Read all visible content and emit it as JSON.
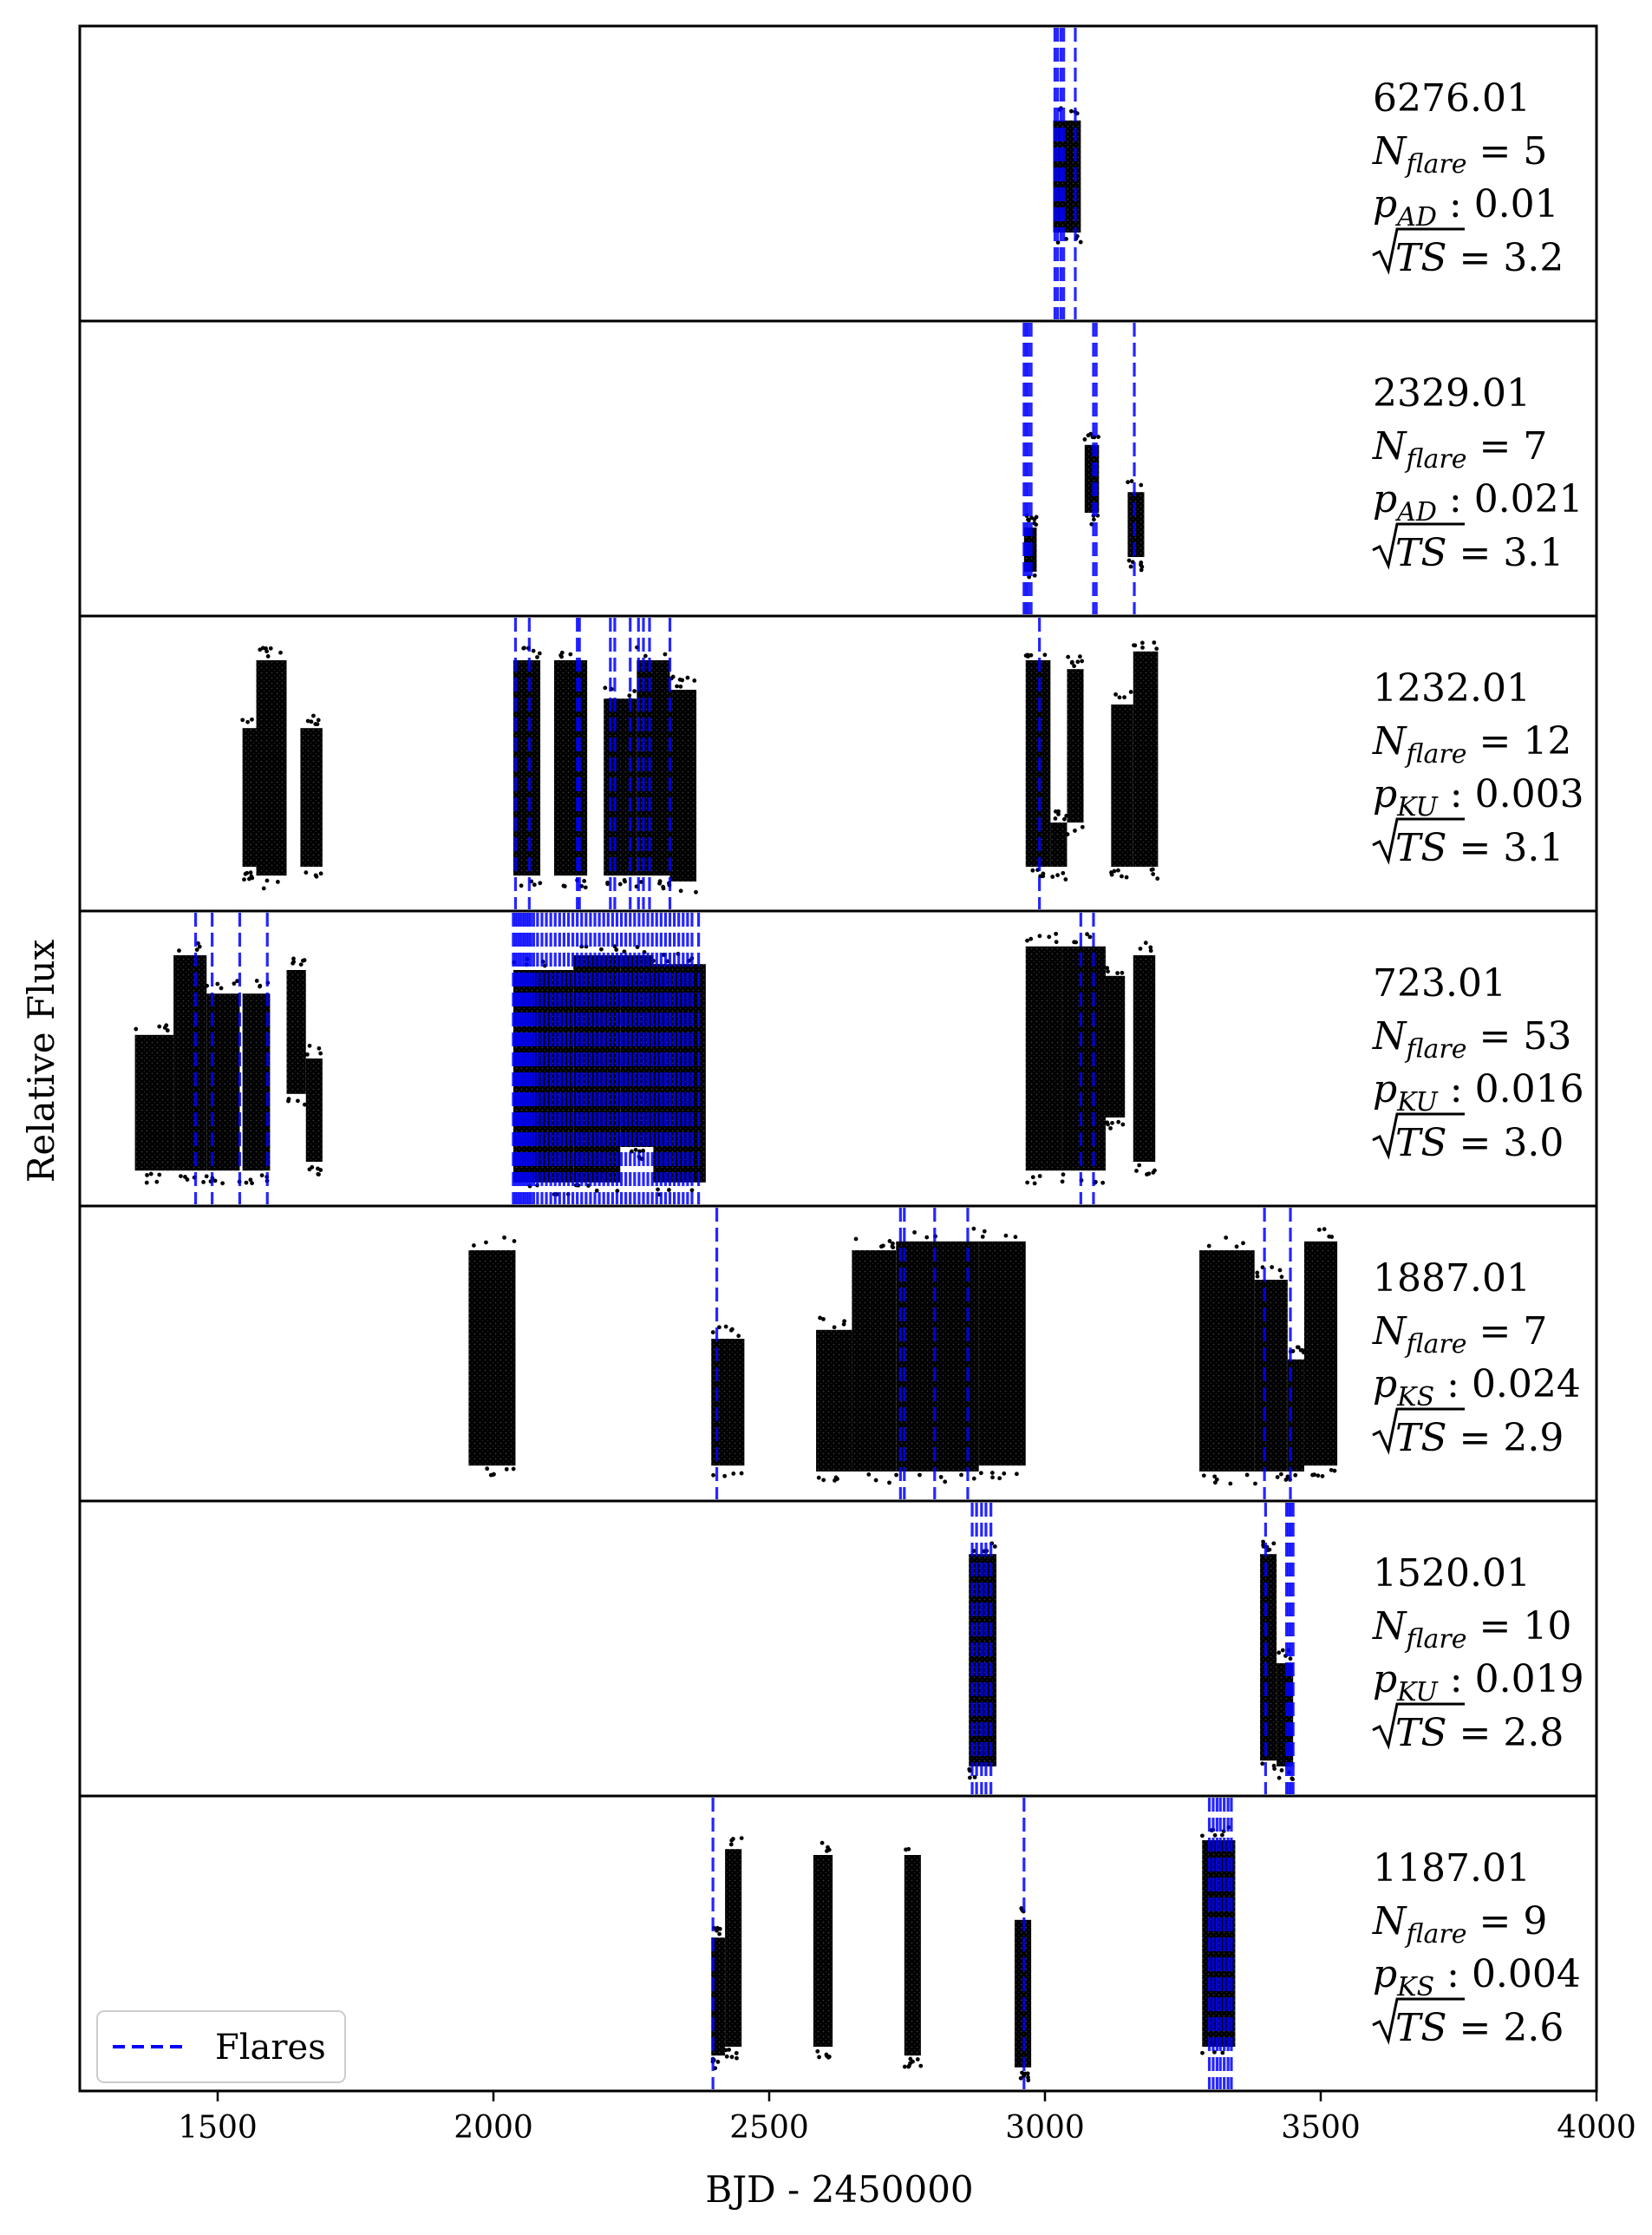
{
  "chart_data": {
    "type": "scatter",
    "xlabel": "BJD - 2450000",
    "ylabel": "Relative Flux",
    "xlim": [
      1250,
      4000
    ],
    "xticks": [
      1500,
      2000,
      2500,
      3000,
      3500,
      4000
    ],
    "xtick_labels": [
      "1500",
      "2000",
      "2500",
      "3000",
      "3500",
      "4000"
    ],
    "yticks_visible": false,
    "grid": false,
    "legend": {
      "placement": "lower-left",
      "entries": [
        {
          "label": "Flares",
          "style": "dashed",
          "color": "#0000ff"
        }
      ]
    },
    "colors": {
      "points": "#000000",
      "flare_lines": "#0000ff"
    },
    "panels": [
      {
        "id": "6276.01",
        "n_flare": "5",
        "p_name": "AD",
        "p_value": "0.01",
        "sqrt_ts": "3.2",
        "segments": [
          {
            "x0": 3015,
            "x1": 3065,
            "ylo": 0.3,
            "yhi": 0.68
          }
        ],
        "flares": [
          3018,
          3023,
          3029,
          3034,
          3055
        ]
      },
      {
        "id": "2329.01",
        "n_flare": "7",
        "p_name": "AD",
        "p_value": "0.021",
        "sqrt_ts": "3.1",
        "segments": [
          {
            "x0": 2962,
            "x1": 2985,
            "ylo": 0.15,
            "yhi": 0.3
          },
          {
            "x0": 3072,
            "x1": 3098,
            "ylo": 0.35,
            "yhi": 0.58
          },
          {
            "x0": 3150,
            "x1": 3180,
            "ylo": 0.2,
            "yhi": 0.42
          }
        ],
        "flares": [
          2962,
          2966,
          2970,
          2975,
          3088,
          3093,
          3162
        ]
      },
      {
        "id": "1232.01",
        "n_flare": "12",
        "p_name": "KU",
        "p_value": "0.003",
        "sqrt_ts": "3.1",
        "segments": [
          {
            "x0": 1545,
            "x1": 1570,
            "ylo": 0.15,
            "yhi": 0.62
          },
          {
            "x0": 1570,
            "x1": 1625,
            "ylo": 0.12,
            "yhi": 0.85
          },
          {
            "x0": 1650,
            "x1": 1690,
            "ylo": 0.15,
            "yhi": 0.62
          },
          {
            "x0": 2036,
            "x1": 2085,
            "ylo": 0.12,
            "yhi": 0.85
          },
          {
            "x0": 2110,
            "x1": 2170,
            "ylo": 0.12,
            "yhi": 0.85
          },
          {
            "x0": 2200,
            "x1": 2260,
            "ylo": 0.12,
            "yhi": 0.72
          },
          {
            "x0": 2260,
            "x1": 2320,
            "ylo": 0.12,
            "yhi": 0.85
          },
          {
            "x0": 2320,
            "x1": 2368,
            "ylo": 0.1,
            "yhi": 0.75
          },
          {
            "x0": 2965,
            "x1": 3010,
            "ylo": 0.15,
            "yhi": 0.85
          },
          {
            "x0": 3040,
            "x1": 3070,
            "ylo": 0.3,
            "yhi": 0.82
          },
          {
            "x0": 3010,
            "x1": 3040,
            "ylo": 0.15,
            "yhi": 0.3
          },
          {
            "x0": 3120,
            "x1": 3160,
            "ylo": 0.15,
            "yhi": 0.7
          },
          {
            "x0": 3160,
            "x1": 3205,
            "ylo": 0.15,
            "yhi": 0.88
          }
        ],
        "flares": [
          2040,
          2065,
          2152,
          2156,
          2212,
          2220,
          2248,
          2263,
          2272,
          2283,
          2320,
          2990
        ]
      },
      {
        "id": "723.01",
        "n_flare": "53",
        "p_name": "KU",
        "p_value": "0.016",
        "sqrt_ts": "3.0",
        "segments": [
          {
            "x0": 1350,
            "x1": 1420,
            "ylo": 0.12,
            "yhi": 0.58
          },
          {
            "x0": 1420,
            "x1": 1480,
            "ylo": 0.12,
            "yhi": 0.85
          },
          {
            "x0": 1480,
            "x1": 1540,
            "ylo": 0.12,
            "yhi": 0.72
          },
          {
            "x0": 1545,
            "x1": 1595,
            "ylo": 0.12,
            "yhi": 0.72
          },
          {
            "x0": 1625,
            "x1": 1660,
            "ylo": 0.38,
            "yhi": 0.8
          },
          {
            "x0": 1660,
            "x1": 1690,
            "ylo": 0.15,
            "yhi": 0.5
          },
          {
            "x0": 2036,
            "x1": 2145,
            "ylo": 0.08,
            "yhi": 0.8
          },
          {
            "x0": 2145,
            "x1": 2230,
            "ylo": 0.08,
            "yhi": 0.85
          },
          {
            "x0": 2230,
            "x1": 2290,
            "ylo": 0.2,
            "yhi": 0.85
          },
          {
            "x0": 2290,
            "x1": 2385,
            "ylo": 0.08,
            "yhi": 0.82
          },
          {
            "x0": 2965,
            "x1": 3030,
            "ylo": 0.12,
            "yhi": 0.88
          },
          {
            "x0": 3030,
            "x1": 3110,
            "ylo": 0.12,
            "yhi": 0.88
          },
          {
            "x0": 3110,
            "x1": 3145,
            "ylo": 0.3,
            "yhi": 0.78
          },
          {
            "x0": 3160,
            "x1": 3200,
            "ylo": 0.15,
            "yhi": 0.85
          }
        ],
        "flares": [
          1460,
          1490,
          1540,
          1590,
          2036,
          2040,
          2044,
          2048,
          2052,
          2056,
          2060,
          2064,
          2068,
          2073,
          2080,
          2088,
          2096,
          2104,
          2112,
          2120,
          2128,
          2136,
          2144,
          2152,
          2160,
          2168,
          2176,
          2184,
          2192,
          2200,
          2208,
          2216,
          2224,
          2232,
          2240,
          2248,
          2256,
          2264,
          2272,
          2280,
          2288,
          2296,
          2304,
          2312,
          2320,
          2328,
          2336,
          2344,
          2352,
          2360,
          2372,
          3065,
          3088
        ]
      },
      {
        "id": "1887.01",
        "n_flare": "7",
        "p_name": "KS",
        "p_value": "0.024",
        "sqrt_ts": "2.9",
        "segments": [
          {
            "x0": 1955,
            "x1": 2040,
            "ylo": 0.12,
            "yhi": 0.85
          },
          {
            "x0": 2395,
            "x1": 2455,
            "ylo": 0.12,
            "yhi": 0.55
          },
          {
            "x0": 2585,
            "x1": 2650,
            "ylo": 0.1,
            "yhi": 0.58
          },
          {
            "x0": 2650,
            "x1": 2730,
            "ylo": 0.1,
            "yhi": 0.85
          },
          {
            "x0": 2730,
            "x1": 2880,
            "ylo": 0.1,
            "yhi": 0.88
          },
          {
            "x0": 2880,
            "x1": 2965,
            "ylo": 0.12,
            "yhi": 0.88
          },
          {
            "x0": 3280,
            "x1": 3380,
            "ylo": 0.1,
            "yhi": 0.85
          },
          {
            "x0": 3380,
            "x1": 3440,
            "ylo": 0.1,
            "yhi": 0.75
          },
          {
            "x0": 3440,
            "x1": 3470,
            "ylo": 0.1,
            "yhi": 0.48
          },
          {
            "x0": 3470,
            "x1": 3530,
            "ylo": 0.12,
            "yhi": 0.88
          }
        ],
        "flares": [
          2405,
          2738,
          2745,
          2800,
          2860,
          3398,
          3445
        ]
      },
      {
        "id": "1520.01",
        "n_flare": "10",
        "p_name": "KU",
        "p_value": "0.019",
        "sqrt_ts": "2.8",
        "segments": [
          {
            "x0": 2862,
            "x1": 2912,
            "ylo": 0.1,
            "yhi": 0.82
          },
          {
            "x0": 3390,
            "x1": 3420,
            "ylo": 0.12,
            "yhi": 0.82
          },
          {
            "x0": 3420,
            "x1": 3450,
            "ylo": 0.1,
            "yhi": 0.45
          }
        ],
        "flares": [
          2868,
          2876,
          2885,
          2893,
          2902,
          3400,
          3438,
          3442,
          3446,
          3450
        ]
      },
      {
        "id": "1187.01",
        "n_flare": "9",
        "p_name": "KS",
        "p_value": "0.004",
        "sqrt_ts": "2.6",
        "segments": [
          {
            "x0": 2395,
            "x1": 2420,
            "ylo": 0.12,
            "yhi": 0.52
          },
          {
            "x0": 2420,
            "x1": 2450,
            "ylo": 0.15,
            "yhi": 0.82
          },
          {
            "x0": 2580,
            "x1": 2615,
            "ylo": 0.15,
            "yhi": 0.8
          },
          {
            "x0": 2745,
            "x1": 2775,
            "ylo": 0.12,
            "yhi": 0.8
          },
          {
            "x0": 2945,
            "x1": 2975,
            "ylo": 0.08,
            "yhi": 0.58
          },
          {
            "x0": 3285,
            "x1": 3345,
            "ylo": 0.15,
            "yhi": 0.85
          }
        ],
        "flares": [
          2398,
          2962,
          3298,
          3305,
          3312,
          3318,
          3325,
          3332,
          3338
        ]
      }
    ]
  }
}
